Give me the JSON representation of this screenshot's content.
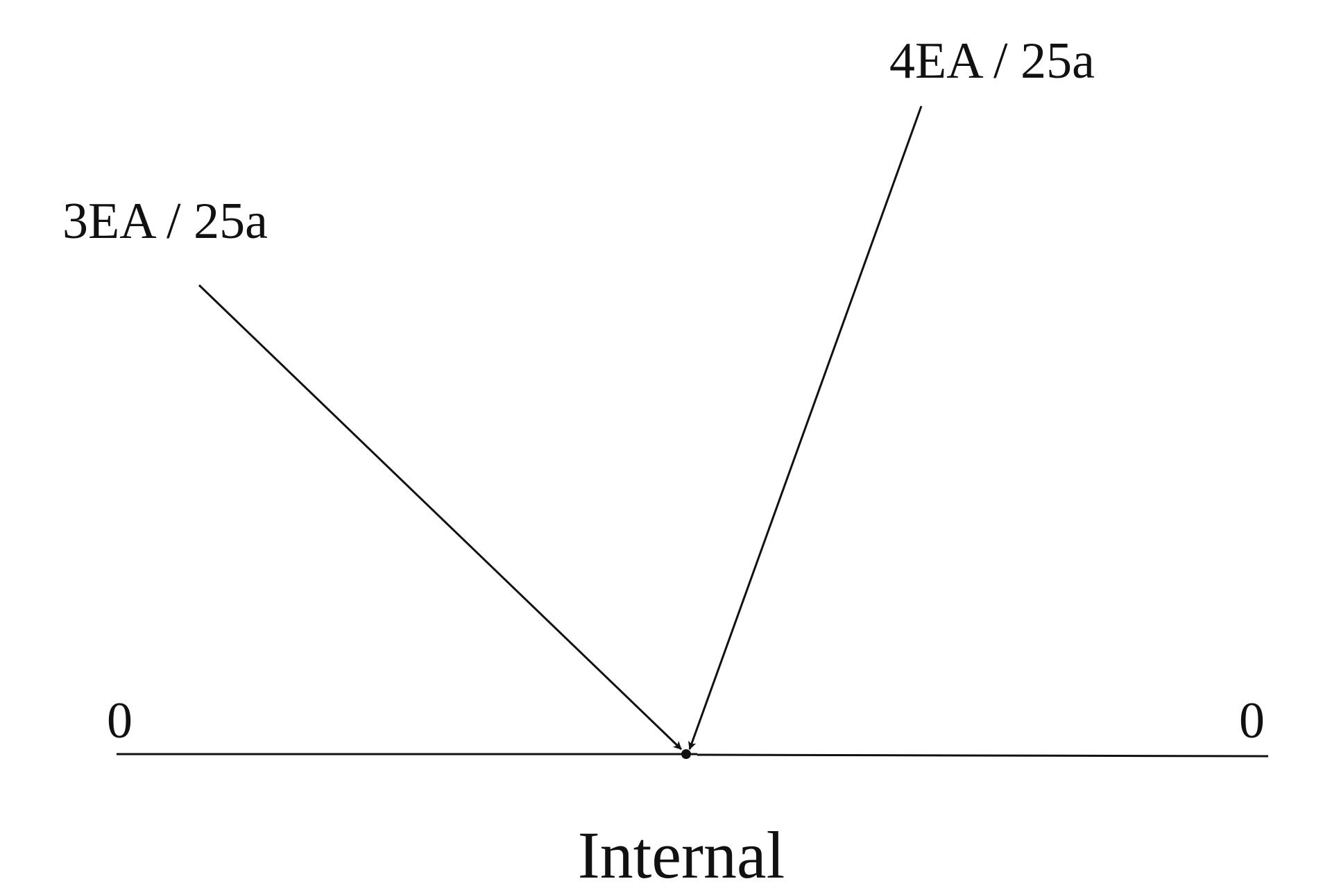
{
  "diagram": {
    "labels": {
      "force_left": "3EA / 25a",
      "force_right": "4EA / 25a",
      "end_left": "0",
      "end_right": "0",
      "title": "Internal"
    },
    "colors": {
      "ink": "#111111",
      "background": "#ffffff"
    }
  }
}
